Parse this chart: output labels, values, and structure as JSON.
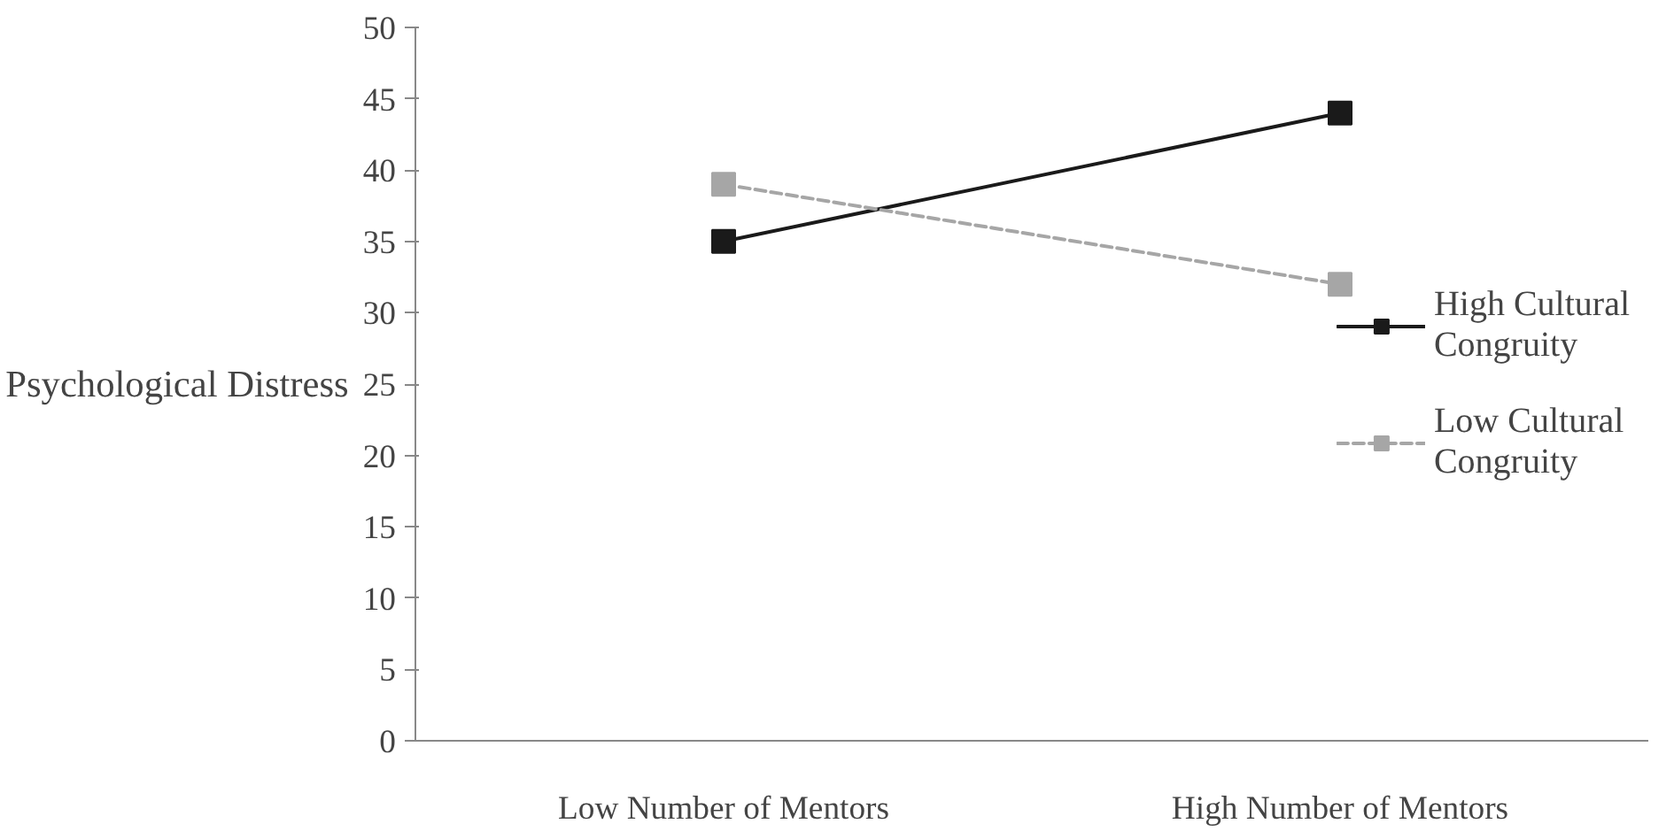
{
  "chart_data": {
    "type": "line",
    "ylabel": "Psychological Distress",
    "categories": [
      "Low Number of Mentors",
      "High Number of Mentors"
    ],
    "series": [
      {
        "name": "High Cultural Congruity",
        "color": "#1a1a1a",
        "values": [
          35,
          44
        ],
        "line_style": "solid"
      },
      {
        "name": "Low Cultural Congruity",
        "color": "#a6a6a6",
        "values": [
          39,
          32
        ],
        "line_style": "dashed"
      }
    ],
    "ylim": [
      0,
      50
    ],
    "yticks": [
      0,
      5,
      10,
      15,
      20,
      25,
      30,
      35,
      40,
      45,
      50
    ],
    "grid": false,
    "legend": "right",
    "marker": "square"
  }
}
